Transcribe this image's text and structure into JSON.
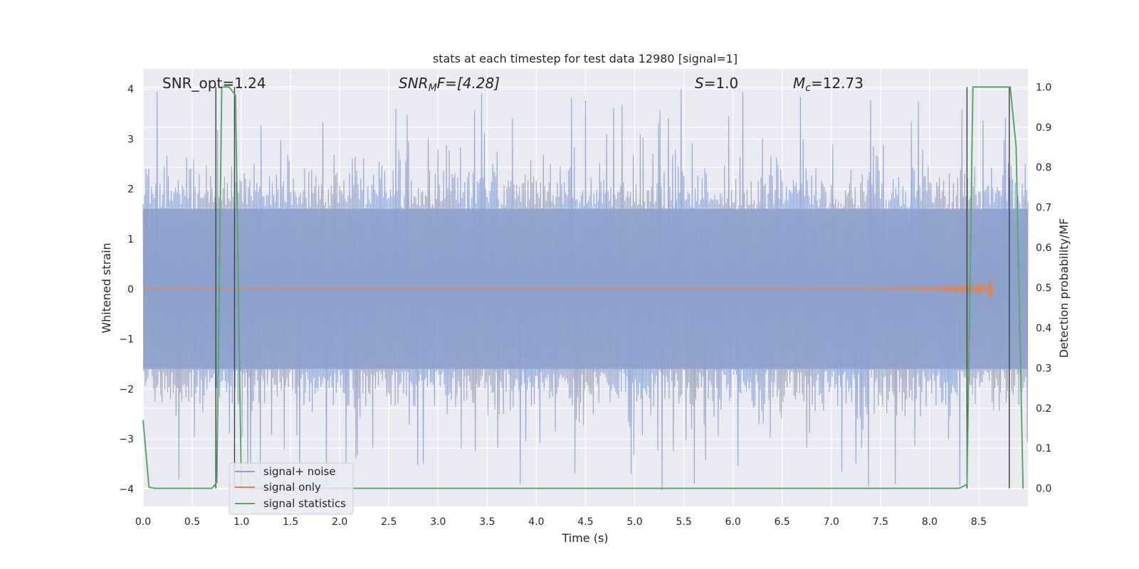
{
  "chart_data": {
    "type": "line",
    "title": "stats at each timestep for test data 12980 [signal=1]",
    "xlabel": "Time (s)",
    "ylabel_left": "Whitened strain",
    "ylabel_right": "Detection probability/MF",
    "xlim": [
      0.0,
      9.0
    ],
    "ylim_left": [
      -4.35,
      4.4
    ],
    "ylim_right": [
      -0.045,
      1.045
    ],
    "x_ticks": [
      "0.0",
      "0.5",
      "1.0",
      "1.5",
      "2.0",
      "2.5",
      "3.0",
      "3.5",
      "4.0",
      "4.5",
      "5.0",
      "5.5",
      "6.0",
      "6.5",
      "7.0",
      "7.5",
      "8.0",
      "8.5"
    ],
    "x_tick_values": [
      0.0,
      0.5,
      1.0,
      1.5,
      2.0,
      2.5,
      3.0,
      3.5,
      4.0,
      4.5,
      5.0,
      5.5,
      6.0,
      6.5,
      7.0,
      7.5,
      8.0,
      8.5
    ],
    "y_left_ticks": [
      "−4",
      "−3",
      "−2",
      "−1",
      "0",
      "1",
      "2",
      "3",
      "4"
    ],
    "y_left_tick_values": [
      -4,
      -3,
      -2,
      -1,
      0,
      1,
      2,
      3,
      4
    ],
    "y_right_ticks": [
      "0.0",
      "0.1",
      "0.2",
      "0.3",
      "0.4",
      "0.5",
      "0.6",
      "0.7",
      "0.8",
      "0.9",
      "1.0"
    ],
    "y_right_tick_values": [
      0.0,
      0.1,
      0.2,
      0.3,
      0.4,
      0.5,
      0.6,
      0.7,
      0.8,
      0.9,
      1.0
    ],
    "grid": true,
    "legend_position": "lower-left",
    "annotations": {
      "snr_opt": "SNR_opt=1.24",
      "snr_mf_main": "SNR",
      "snr_mf_sub": "M",
      "snr_mf_rest": "F=[4.28]",
      "s_main": "S",
      "s_rest": "=1.0",
      "mc_main": "M",
      "mc_sub": "c",
      "mc_rest": "=12.73"
    },
    "noise_envelope": {
      "base_abs": 1.6,
      "typical_peak_abs": 2.5,
      "max_abs": 4.05,
      "sample_rate_hz": 100
    },
    "signal_only": {
      "x": [
        0.0,
        7.0,
        7.5,
        8.0,
        8.2,
        8.4,
        8.55,
        8.62,
        8.65
      ],
      "amplitude": [
        0.0,
        0.01,
        0.02,
        0.04,
        0.07,
        0.12,
        0.18,
        0.22,
        0.0
      ]
    },
    "series": [
      {
        "name": "signal+ noise",
        "color": "#8da0cb"
      },
      {
        "name": "signal only",
        "color": "#dd8452"
      },
      {
        "name": "signal statistics",
        "color": "#55a868",
        "x": [
          0.0,
          0.06,
          0.12,
          0.7,
          0.75,
          0.8,
          0.875,
          0.94,
          1.0,
          1.5,
          2.0,
          8.0,
          8.3,
          8.38,
          8.44,
          8.5,
          8.82,
          8.88,
          8.95
        ],
        "y": [
          0.17,
          0.003,
          0.0,
          0.0,
          0.015,
          1.0,
          1.0,
          0.98,
          0.0,
          0.0,
          0.0,
          0.0,
          0.0,
          0.01,
          1.0,
          1.0,
          1.0,
          0.85,
          0.0
        ]
      }
    ],
    "vertical_markers_x": [
      0.74,
      0.93,
      8.38,
      8.81
    ],
    "colors": {
      "axes_bg": "#eaeaf2",
      "grid": "#ffffff",
      "noise": "#8da0cb",
      "signal": "#dd8452",
      "stats": "#55a868",
      "marker": "#404040"
    }
  }
}
